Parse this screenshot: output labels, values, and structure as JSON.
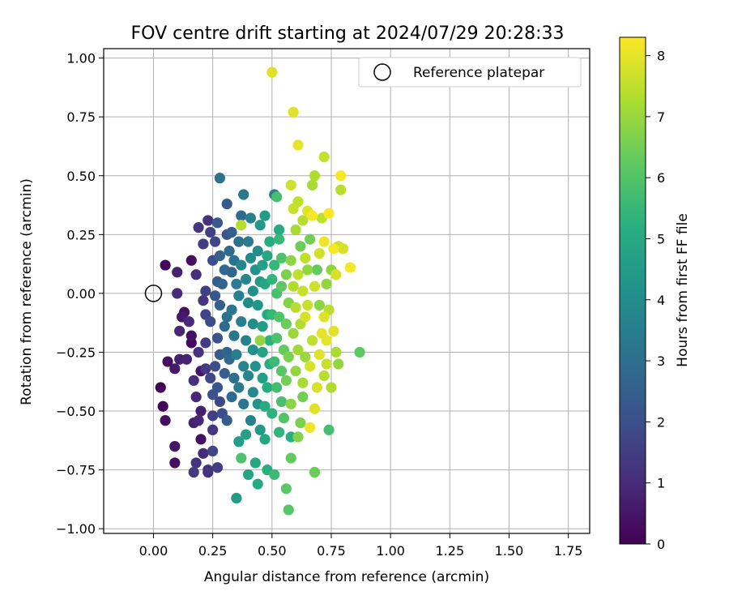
{
  "chart_data": {
    "type": "scatter",
    "title": "FOV centre drift starting at 2024/07/29 20:28:33",
    "xlabel": "Angular distance from reference (arcmin)",
    "ylabel": "Rotation from reference (arcmin)",
    "xlim": [
      -0.21,
      1.84
    ],
    "ylim": [
      -1.02,
      1.04
    ],
    "xticks": [
      "0.00",
      "0.25",
      "0.50",
      "0.75",
      "1.00",
      "1.25",
      "1.50",
      "1.75"
    ],
    "yticks": [
      "1.00",
      "0.75",
      "0.50",
      "0.25",
      "0.00",
      "−0.25",
      "−0.50",
      "−0.75",
      "−1.00"
    ],
    "xtick_values": [
      0,
      0.25,
      0.5,
      0.75,
      1.0,
      1.25,
      1.5,
      1.75
    ],
    "ytick_values": [
      1.0,
      0.75,
      0.5,
      0.25,
      0.0,
      -0.25,
      -0.5,
      -0.75,
      -1.0
    ],
    "grid": true,
    "legend": {
      "position": "top-right",
      "entries": [
        "Reference platepar"
      ]
    },
    "reference_point": {
      "x": 0.0,
      "y": 0.0,
      "marker": "open-circle"
    },
    "colorbar": {
      "label": "Hours from first FF file",
      "colormap": "viridis",
      "range": [
        0,
        8.3
      ],
      "ticks": [
        "0",
        "1",
        "2",
        "3",
        "4",
        "5",
        "6",
        "7",
        "8"
      ],
      "tick_values": [
        0,
        1,
        2,
        3,
        4,
        5,
        6,
        7,
        8
      ]
    },
    "series": [
      {
        "marker": "filled-circle",
        "color_by": "hours",
        "points": [
          [
            0.03,
            -0.4,
            0.1
          ],
          [
            0.04,
            -0.48,
            0.2
          ],
          [
            0.05,
            -0.54,
            0.3
          ],
          [
            0.05,
            0.12,
            0.2
          ],
          [
            0.06,
            -0.29,
            0.4
          ],
          [
            0.09,
            -0.65,
            0.5
          ],
          [
            0.09,
            -0.72,
            0.3
          ],
          [
            0.09,
            -0.32,
            0.6
          ],
          [
            0.1,
            0.09,
            0.8
          ],
          [
            0.1,
            0.0,
            1.0
          ],
          [
            0.11,
            -0.16,
            0.9
          ],
          [
            0.11,
            -0.28,
            0.7
          ],
          [
            0.12,
            -0.1,
            0.6
          ],
          [
            0.13,
            -0.08,
            0.4
          ],
          [
            0.14,
            -0.28,
            0.8
          ],
          [
            0.15,
            -0.12,
            1.0
          ],
          [
            0.16,
            0.14,
            0.3
          ],
          [
            0.16,
            -0.18,
            0.4
          ],
          [
            0.16,
            -0.21,
            0.2
          ],
          [
            0.17,
            -0.55,
            0.8
          ],
          [
            0.17,
            -0.37,
            1.1
          ],
          [
            0.17,
            -0.76,
            1.4
          ],
          [
            0.18,
            -0.72,
            1.2
          ],
          [
            0.18,
            -0.44,
            0.9
          ],
          [
            0.18,
            0.08,
            1.1
          ],
          [
            0.19,
            0.28,
            1.3
          ],
          [
            0.19,
            -0.25,
            1.2
          ],
          [
            0.19,
            -0.54,
            0.9
          ],
          [
            0.2,
            -0.5,
            0.7
          ],
          [
            0.2,
            -0.33,
            0.5
          ],
          [
            0.2,
            -0.62,
            0.4
          ],
          [
            0.21,
            -0.68,
            1.0
          ],
          [
            0.21,
            0.21,
            1.5
          ],
          [
            0.21,
            -0.03,
            1.3
          ],
          [
            0.22,
            0.01,
            1.6
          ],
          [
            0.22,
            -0.21,
            1.5
          ],
          [
            0.22,
            -0.09,
            1.7
          ],
          [
            0.22,
            -0.32,
            1.4
          ],
          [
            0.23,
            -0.75,
            1.2
          ],
          [
            0.23,
            -0.76,
            1.1
          ],
          [
            0.23,
            0.31,
            1.2
          ],
          [
            0.24,
            0.26,
            1.6
          ],
          [
            0.24,
            -0.36,
            1.8
          ],
          [
            0.24,
            -0.12,
            1.9
          ],
          [
            0.25,
            0.14,
            2.0
          ],
          [
            0.25,
            -0.67,
            1.7
          ],
          [
            0.25,
            -0.52,
            1.6
          ],
          [
            0.25,
            -0.58,
            1.3
          ],
          [
            0.25,
            -0.43,
            2.1
          ],
          [
            0.26,
            0.22,
            1.8
          ],
          [
            0.26,
            -0.01,
            2.2
          ],
          [
            0.26,
            -0.31,
            2.0
          ],
          [
            0.27,
            0.3,
            2.3
          ],
          [
            0.27,
            -0.19,
            2.1
          ],
          [
            0.27,
            -0.74,
            1.5
          ],
          [
            0.27,
            0.05,
            2.4
          ],
          [
            0.27,
            -0.4,
            2.2
          ],
          [
            0.28,
            0.49,
            3.1
          ],
          [
            0.28,
            0.16,
            2.6
          ],
          [
            0.28,
            -0.46,
            1.8
          ],
          [
            0.28,
            -0.05,
            2.5
          ],
          [
            0.28,
            -0.26,
            2.3
          ],
          [
            0.29,
            0.04,
            2.7
          ],
          [
            0.29,
            -0.51,
            2.0
          ],
          [
            0.3,
            0.1,
            2.8
          ],
          [
            0.3,
            -0.14,
            2.9
          ],
          [
            0.3,
            -0.34,
            2.5
          ],
          [
            0.31,
            0.25,
            2.2
          ],
          [
            0.31,
            -0.25,
            2.6
          ],
          [
            0.31,
            -0.54,
            2.4
          ],
          [
            0.31,
            0.38,
            2.4
          ],
          [
            0.31,
            -0.1,
            3.0
          ],
          [
            0.32,
            0.18,
            2.9
          ],
          [
            0.32,
            -0.28,
            2.8
          ],
          [
            0.33,
            0.09,
            2.7
          ],
          [
            0.33,
            -0.07,
            3.2
          ],
          [
            0.33,
            -0.44,
            2.9
          ],
          [
            0.33,
            0.26,
            2.5
          ],
          [
            0.34,
            -0.18,
            3.3
          ],
          [
            0.34,
            0.14,
            3.1
          ],
          [
            0.34,
            -0.36,
            3.0
          ],
          [
            0.35,
            -0.87,
            4.5
          ],
          [
            0.35,
            0.04,
            3.4
          ],
          [
            0.35,
            -0.26,
            3.5
          ],
          [
            0.36,
            0.22,
            3.0
          ],
          [
            0.36,
            -0.63,
            4.6
          ],
          [
            0.36,
            -0.01,
            3.6
          ],
          [
            0.36,
            -0.4,
            3.4
          ],
          [
            0.37,
            -0.7,
            5.9
          ],
          [
            0.37,
            0.29,
            7.4
          ],
          [
            0.37,
            0.33,
            2.9
          ],
          [
            0.37,
            0.12,
            3.7
          ],
          [
            0.37,
            -0.12,
            3.5
          ],
          [
            0.38,
            -0.31,
            3.7
          ],
          [
            0.38,
            0.42,
            3.3
          ],
          [
            0.38,
            -0.47,
            3.2
          ],
          [
            0.39,
            0.06,
            3.8
          ],
          [
            0.39,
            -0.2,
            3.6
          ],
          [
            0.39,
            -0.6,
            4.7
          ],
          [
            0.4,
            -0.77,
            4.8
          ],
          [
            0.4,
            0.22,
            3.4
          ],
          [
            0.4,
            -0.04,
            3.9
          ],
          [
            0.4,
            -0.35,
            3.8
          ],
          [
            0.41,
            0.32,
            3.6
          ],
          [
            0.41,
            0.15,
            3.9
          ],
          [
            0.41,
            -0.54,
            3.6
          ],
          [
            0.42,
            -0.13,
            4.0
          ],
          [
            0.42,
            -0.42,
            3.9
          ],
          [
            0.42,
            0.01,
            4.1
          ],
          [
            0.42,
            -0.24,
            4.2
          ],
          [
            0.43,
            0.1,
            4.2
          ],
          [
            0.43,
            -0.72,
            4.9
          ],
          [
            0.43,
            -0.31,
            4.1
          ],
          [
            0.44,
            -0.81,
            5.0
          ],
          [
            0.44,
            -0.05,
            4.3
          ],
          [
            0.44,
            0.18,
            4.0
          ],
          [
            0.44,
            -0.47,
            4.3
          ],
          [
            0.45,
            -0.2,
            6.9
          ],
          [
            0.45,
            0.29,
            4.4
          ],
          [
            0.45,
            -0.58,
            4.4
          ],
          [
            0.45,
            0.05,
            4.5
          ],
          [
            0.46,
            -0.36,
            4.6
          ],
          [
            0.46,
            0.12,
            4.7
          ],
          [
            0.46,
            -0.14,
            4.5
          ],
          [
            0.46,
            -0.25,
            4.8
          ],
          [
            0.47,
            0.33,
            4.5
          ],
          [
            0.47,
            0.04,
            4.9
          ],
          [
            0.47,
            -0.62,
            4.9
          ],
          [
            0.47,
            -0.48,
            5.0
          ],
          [
            0.48,
            0.16,
            4.9
          ],
          [
            0.48,
            -0.4,
            5.1
          ],
          [
            0.48,
            -0.09,
            5.0
          ],
          [
            0.48,
            -0.75,
            5.2
          ],
          [
            0.49,
            0.22,
            5.1
          ],
          [
            0.49,
            -0.3,
            5.2
          ],
          [
            0.49,
            -0.2,
            5.3
          ],
          [
            0.5,
            0.94,
            7.9
          ],
          [
            0.5,
            -0.51,
            5.3
          ],
          [
            0.5,
            0.06,
            5.4
          ],
          [
            0.5,
            -0.09,
            5.5
          ],
          [
            0.51,
            0.42,
            3.4
          ],
          [
            0.51,
            -0.77,
            5.6
          ],
          [
            0.51,
            0.12,
            5.5
          ],
          [
            0.51,
            -0.29,
            5.6
          ],
          [
            0.52,
            -0.4,
            5.7
          ],
          [
            0.52,
            0.41,
            5.8
          ],
          [
            0.52,
            0.0,
            5.8
          ],
          [
            0.52,
            -0.19,
            5.9
          ],
          [
            0.53,
            0.27,
            5.0
          ],
          [
            0.53,
            0.23,
            5.5
          ],
          [
            0.53,
            -0.59,
            5.4
          ],
          [
            0.53,
            -0.1,
            6.0
          ],
          [
            0.54,
            -0.33,
            6.1
          ],
          [
            0.54,
            0.15,
            5.9
          ],
          [
            0.54,
            -0.46,
            5.8
          ],
          [
            0.54,
            0.03,
            6.2
          ],
          [
            0.55,
            -0.24,
            6.3
          ],
          [
            0.55,
            -0.53,
            6.0
          ],
          [
            0.56,
            -0.13,
            6.4
          ],
          [
            0.56,
            0.08,
            6.6
          ],
          [
            0.56,
            -0.83,
            6.2
          ],
          [
            0.56,
            -0.37,
            6.5
          ],
          [
            0.57,
            -0.92,
            6.1
          ],
          [
            0.57,
            -0.04,
            6.7
          ],
          [
            0.57,
            -0.27,
            6.6
          ],
          [
            0.58,
            0.46,
            7.7
          ],
          [
            0.58,
            0.14,
            6.8
          ],
          [
            0.58,
            -0.61,
            5.2
          ],
          [
            0.58,
            -0.7,
            6.3
          ],
          [
            0.58,
            -0.47,
            6.8
          ],
          [
            0.59,
            0.77,
            7.9
          ],
          [
            0.59,
            0.36,
            7.6
          ],
          [
            0.59,
            -0.17,
            7.0
          ],
          [
            0.59,
            0.03,
            7.3
          ],
          [
            0.6,
            -0.33,
            6.9
          ],
          [
            0.6,
            0.27,
            7.2
          ],
          [
            0.6,
            -0.06,
            7.4
          ],
          [
            0.61,
            0.63,
            8.0
          ],
          [
            0.61,
            0.39,
            7.5
          ],
          [
            0.61,
            -0.61,
            6.7
          ],
          [
            0.61,
            0.08,
            7.5
          ],
          [
            0.61,
            -0.24,
            7.1
          ],
          [
            0.62,
            -0.55,
            6.6
          ],
          [
            0.62,
            -0.13,
            7.3
          ],
          [
            0.62,
            0.2,
            6.4
          ],
          [
            0.63,
            -0.38,
            7.2
          ],
          [
            0.63,
            0.01,
            7.6
          ],
          [
            0.63,
            0.31,
            7.4
          ],
          [
            0.63,
            -0.44,
            6.5
          ],
          [
            0.64,
            -0.27,
            7.0
          ],
          [
            0.64,
            0.15,
            7.5
          ],
          [
            0.64,
            -0.1,
            7.8
          ],
          [
            0.65,
            0.35,
            7.9
          ],
          [
            0.65,
            0.1,
            6.9
          ],
          [
            0.65,
            -0.05,
            7.6
          ],
          [
            0.66,
            -0.31,
            7.8
          ],
          [
            0.66,
            -0.57,
            8.1
          ],
          [
            0.66,
            0.23,
            6.5
          ],
          [
            0.67,
            0.46,
            7.2
          ],
          [
            0.67,
            0.33,
            8.2
          ],
          [
            0.67,
            -0.2,
            7.5
          ],
          [
            0.68,
            0.5,
            7.3
          ],
          [
            0.68,
            0.03,
            7.7
          ],
          [
            0.68,
            -0.49,
            7.9
          ],
          [
            0.68,
            -0.76,
            6.4
          ],
          [
            0.69,
            0.1,
            6.3
          ],
          [
            0.69,
            -0.4,
            7.8
          ],
          [
            0.7,
            0.17,
            7.7
          ],
          [
            0.7,
            -0.26,
            7.9
          ],
          [
            0.7,
            -0.05,
            6.8
          ],
          [
            0.71,
            0.32,
            7.5
          ],
          [
            0.71,
            -0.17,
            8.0
          ],
          [
            0.72,
            0.58,
            7.6
          ],
          [
            0.72,
            -0.35,
            7.4
          ],
          [
            0.72,
            0.22,
            8.1
          ],
          [
            0.72,
            -0.1,
            7.9
          ],
          [
            0.73,
            0.04,
            6.9
          ],
          [
            0.73,
            -0.3,
            7.6
          ],
          [
            0.73,
            -0.2,
            8.0
          ],
          [
            0.74,
            0.34,
            8.3
          ],
          [
            0.74,
            -0.07,
            7.4
          ],
          [
            0.74,
            -0.58,
            5.8
          ],
          [
            0.75,
            0.1,
            6.9
          ],
          [
            0.75,
            -0.4,
            7.3
          ],
          [
            0.76,
            0.19,
            8.2
          ],
          [
            0.76,
            -0.16,
            7.9
          ],
          [
            0.77,
            0.08,
            7.8
          ],
          [
            0.77,
            -0.25,
            7.2
          ],
          [
            0.78,
            0.2,
            7.6
          ],
          [
            0.78,
            -0.3,
            6.9
          ],
          [
            0.79,
            0.5,
            8.2
          ],
          [
            0.79,
            0.44,
            7.4
          ],
          [
            0.8,
            0.19,
            7.8
          ],
          [
            0.83,
            0.11,
            8.2
          ],
          [
            0.87,
            -0.25,
            6.2
          ]
        ]
      }
    ]
  }
}
